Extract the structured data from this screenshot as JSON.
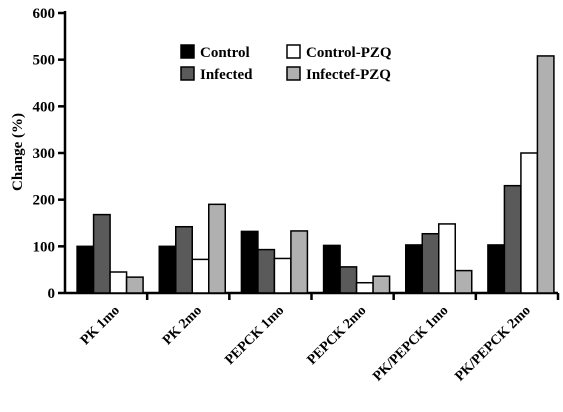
{
  "chart_data": {
    "type": "bar",
    "title": "",
    "xlabel": "",
    "ylabel": "Change (%)",
    "ylim": [
      0,
      600
    ],
    "yticks": [
      0,
      100,
      200,
      300,
      400,
      500,
      600
    ],
    "ytick_labels": [
      "0",
      "100",
      "200",
      "300",
      "400",
      "500",
      "600"
    ],
    "categories": [
      "PK 1mo",
      "PK 2mo",
      "PEPCK 1mo",
      "PEPCK 2mo",
      "PK/PEPCK 1mo",
      "PK/PEPCK 2mo"
    ],
    "grid": false,
    "legend_position": "top-center",
    "series": [
      {
        "name": "Control",
        "color": "#000000",
        "values": [
          100,
          100,
          132,
          102,
          103,
          103
        ]
      },
      {
        "name": "Infected",
        "color": "#5a5a5a",
        "values": [
          168,
          142,
          93,
          56,
          127,
          230
        ]
      },
      {
        "name": "Control-PZQ",
        "color": "#ffffff",
        "values": [
          45,
          72,
          74,
          22,
          148,
          300
        ]
      },
      {
        "name": "Infectef-PZQ",
        "color": "#b0b0b0",
        "values": [
          34,
          190,
          133,
          36,
          48,
          508
        ]
      }
    ]
  }
}
